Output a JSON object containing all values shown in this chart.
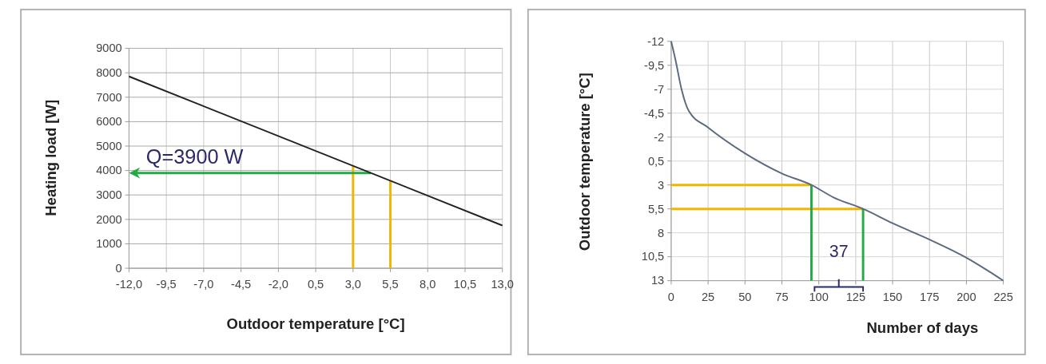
{
  "chart_data": [
    {
      "type": "line",
      "xlabel": "Outdoor temperature [°C]",
      "ylabel": "Heating load [W]",
      "x": [
        -12,
        13
      ],
      "series": [
        {
          "color": "#222222",
          "values": [
            7850,
            1750
          ]
        }
      ],
      "xlim": [
        -12,
        13
      ],
      "xticks": [
        {
          "value": -12,
          "label": "-12,0"
        },
        {
          "value": -9.5,
          "label": "-9,5"
        },
        {
          "value": -7,
          "label": "-7,0"
        },
        {
          "value": -4.5,
          "label": "-4,5"
        },
        {
          "value": -2,
          "label": "-2,0"
        },
        {
          "value": 0.5,
          "label": "0,5"
        },
        {
          "value": 3,
          "label": "3,0"
        },
        {
          "value": 5.5,
          "label": "5,5"
        },
        {
          "value": 8,
          "label": "8,0"
        },
        {
          "value": 10.5,
          "label": "10,5"
        },
        {
          "value": 13,
          "label": "13,0"
        }
      ],
      "ylim": [
        0,
        9000
      ],
      "yticks": [
        0,
        1000,
        2000,
        3000,
        4000,
        5000,
        6000,
        7000,
        8000,
        9000
      ],
      "grid": true,
      "ref_lines": [
        {
          "axis": "x",
          "value": 3,
          "color": "#f2b600"
        },
        {
          "axis": "x",
          "value": 5.5,
          "color": "#f2b600"
        },
        {
          "axis": "y",
          "value": 3900,
          "label": "Q=3900 W",
          "color": "#22aa44"
        }
      ]
    },
    {
      "type": "line",
      "xlabel": "Number of days",
      "ylabel": "Outdoor temperature [°C]",
      "x": [
        0,
        3,
        7,
        12,
        25,
        50,
        75,
        95,
        110,
        130,
        150,
        175,
        200,
        215,
        225
      ],
      "series": [
        {
          "color": "#5a6a80",
          "values": [
            -12,
            -10,
            -7,
            -4.7,
            -3,
            -0.3,
            1.8,
            3,
            4.3,
            5.5,
            7,
            8.7,
            10.6,
            12,
            13
          ]
        }
      ],
      "xlim": [
        0,
        225
      ],
      "xticks": [
        0,
        25,
        50,
        75,
        100,
        125,
        150,
        175,
        200,
        225
      ],
      "ylim": [
        13,
        -12
      ],
      "yticks": [
        -12,
        {
          "value": -9.5,
          "label": "-9,5"
        },
        -7,
        {
          "value": -4.5,
          "label": "-4,5"
        },
        -2,
        {
          "value": 0.5,
          "label": "0,5"
        },
        3,
        {
          "value": 5.5,
          "label": "5,5"
        },
        8,
        {
          "value": 10.5,
          "label": "10,5"
        },
        13
      ],
      "grid": true,
      "ref_lines": [
        {
          "axis": "y",
          "value": 3,
          "color": "#f2b600"
        },
        {
          "axis": "y",
          "value": 5.5,
          "color": "#f2b600"
        },
        {
          "axis": "x",
          "value": 95,
          "color": "#22aa44"
        },
        {
          "axis": "x",
          "value": 130,
          "color": "#22aa44"
        }
      ],
      "annotations": [
        "37"
      ]
    }
  ]
}
